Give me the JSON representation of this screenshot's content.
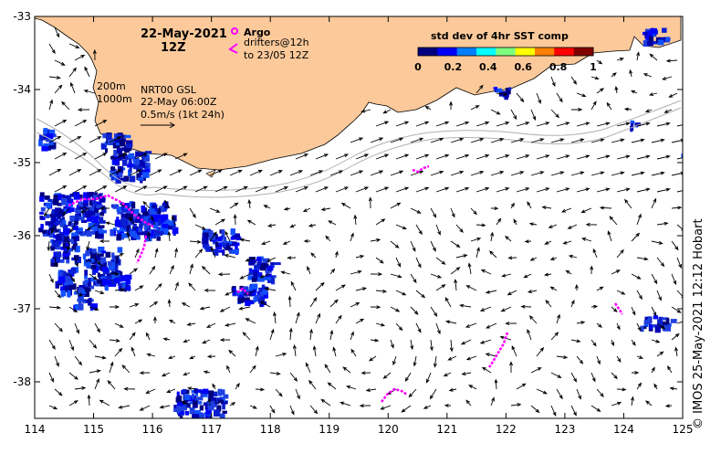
{
  "map": {
    "lon_ticks": [
      "114",
      "115",
      "116",
      "117",
      "118",
      "119",
      "120",
      "121",
      "122",
      "123",
      "124",
      "125"
    ],
    "lat_ticks": [
      "-33",
      "-34",
      "-35",
      "-36",
      "-37",
      "-38"
    ],
    "lon_range": [
      114,
      125
    ],
    "lat_range": [
      -38.5,
      -33
    ]
  },
  "header": {
    "date": "22-May-2021",
    "time": "12Z"
  },
  "legend": {
    "argo_label": "Argo",
    "drifters_label_1": "drifters@12h",
    "drifters_label_2": "to 23/05 12Z",
    "argo_color": "#ff00ff",
    "drifter_color": "#ff00ff"
  },
  "isobaths": {
    "label_1": "200m",
    "label_2": "1000m"
  },
  "current_info": {
    "line1": "NRT00 GSL",
    "line2": "22-May 06:00Z",
    "line3": "0.5m/s (1kt 24h)"
  },
  "colorbar": {
    "title": "std dev of 4hr SST comp",
    "ticks": [
      "0",
      "0.2",
      "0.4",
      "0.6",
      "0.8",
      "1"
    ],
    "colors": [
      "#00007f",
      "#0000ff",
      "#007fff",
      "#00ffff",
      "#7fff7f",
      "#ffff00",
      "#ff7f00",
      "#ff0000",
      "#7f0000"
    ]
  },
  "land_color": "#fbc99a",
  "credit": "© IMOS 25-May-2021 12:12 Hobart"
}
